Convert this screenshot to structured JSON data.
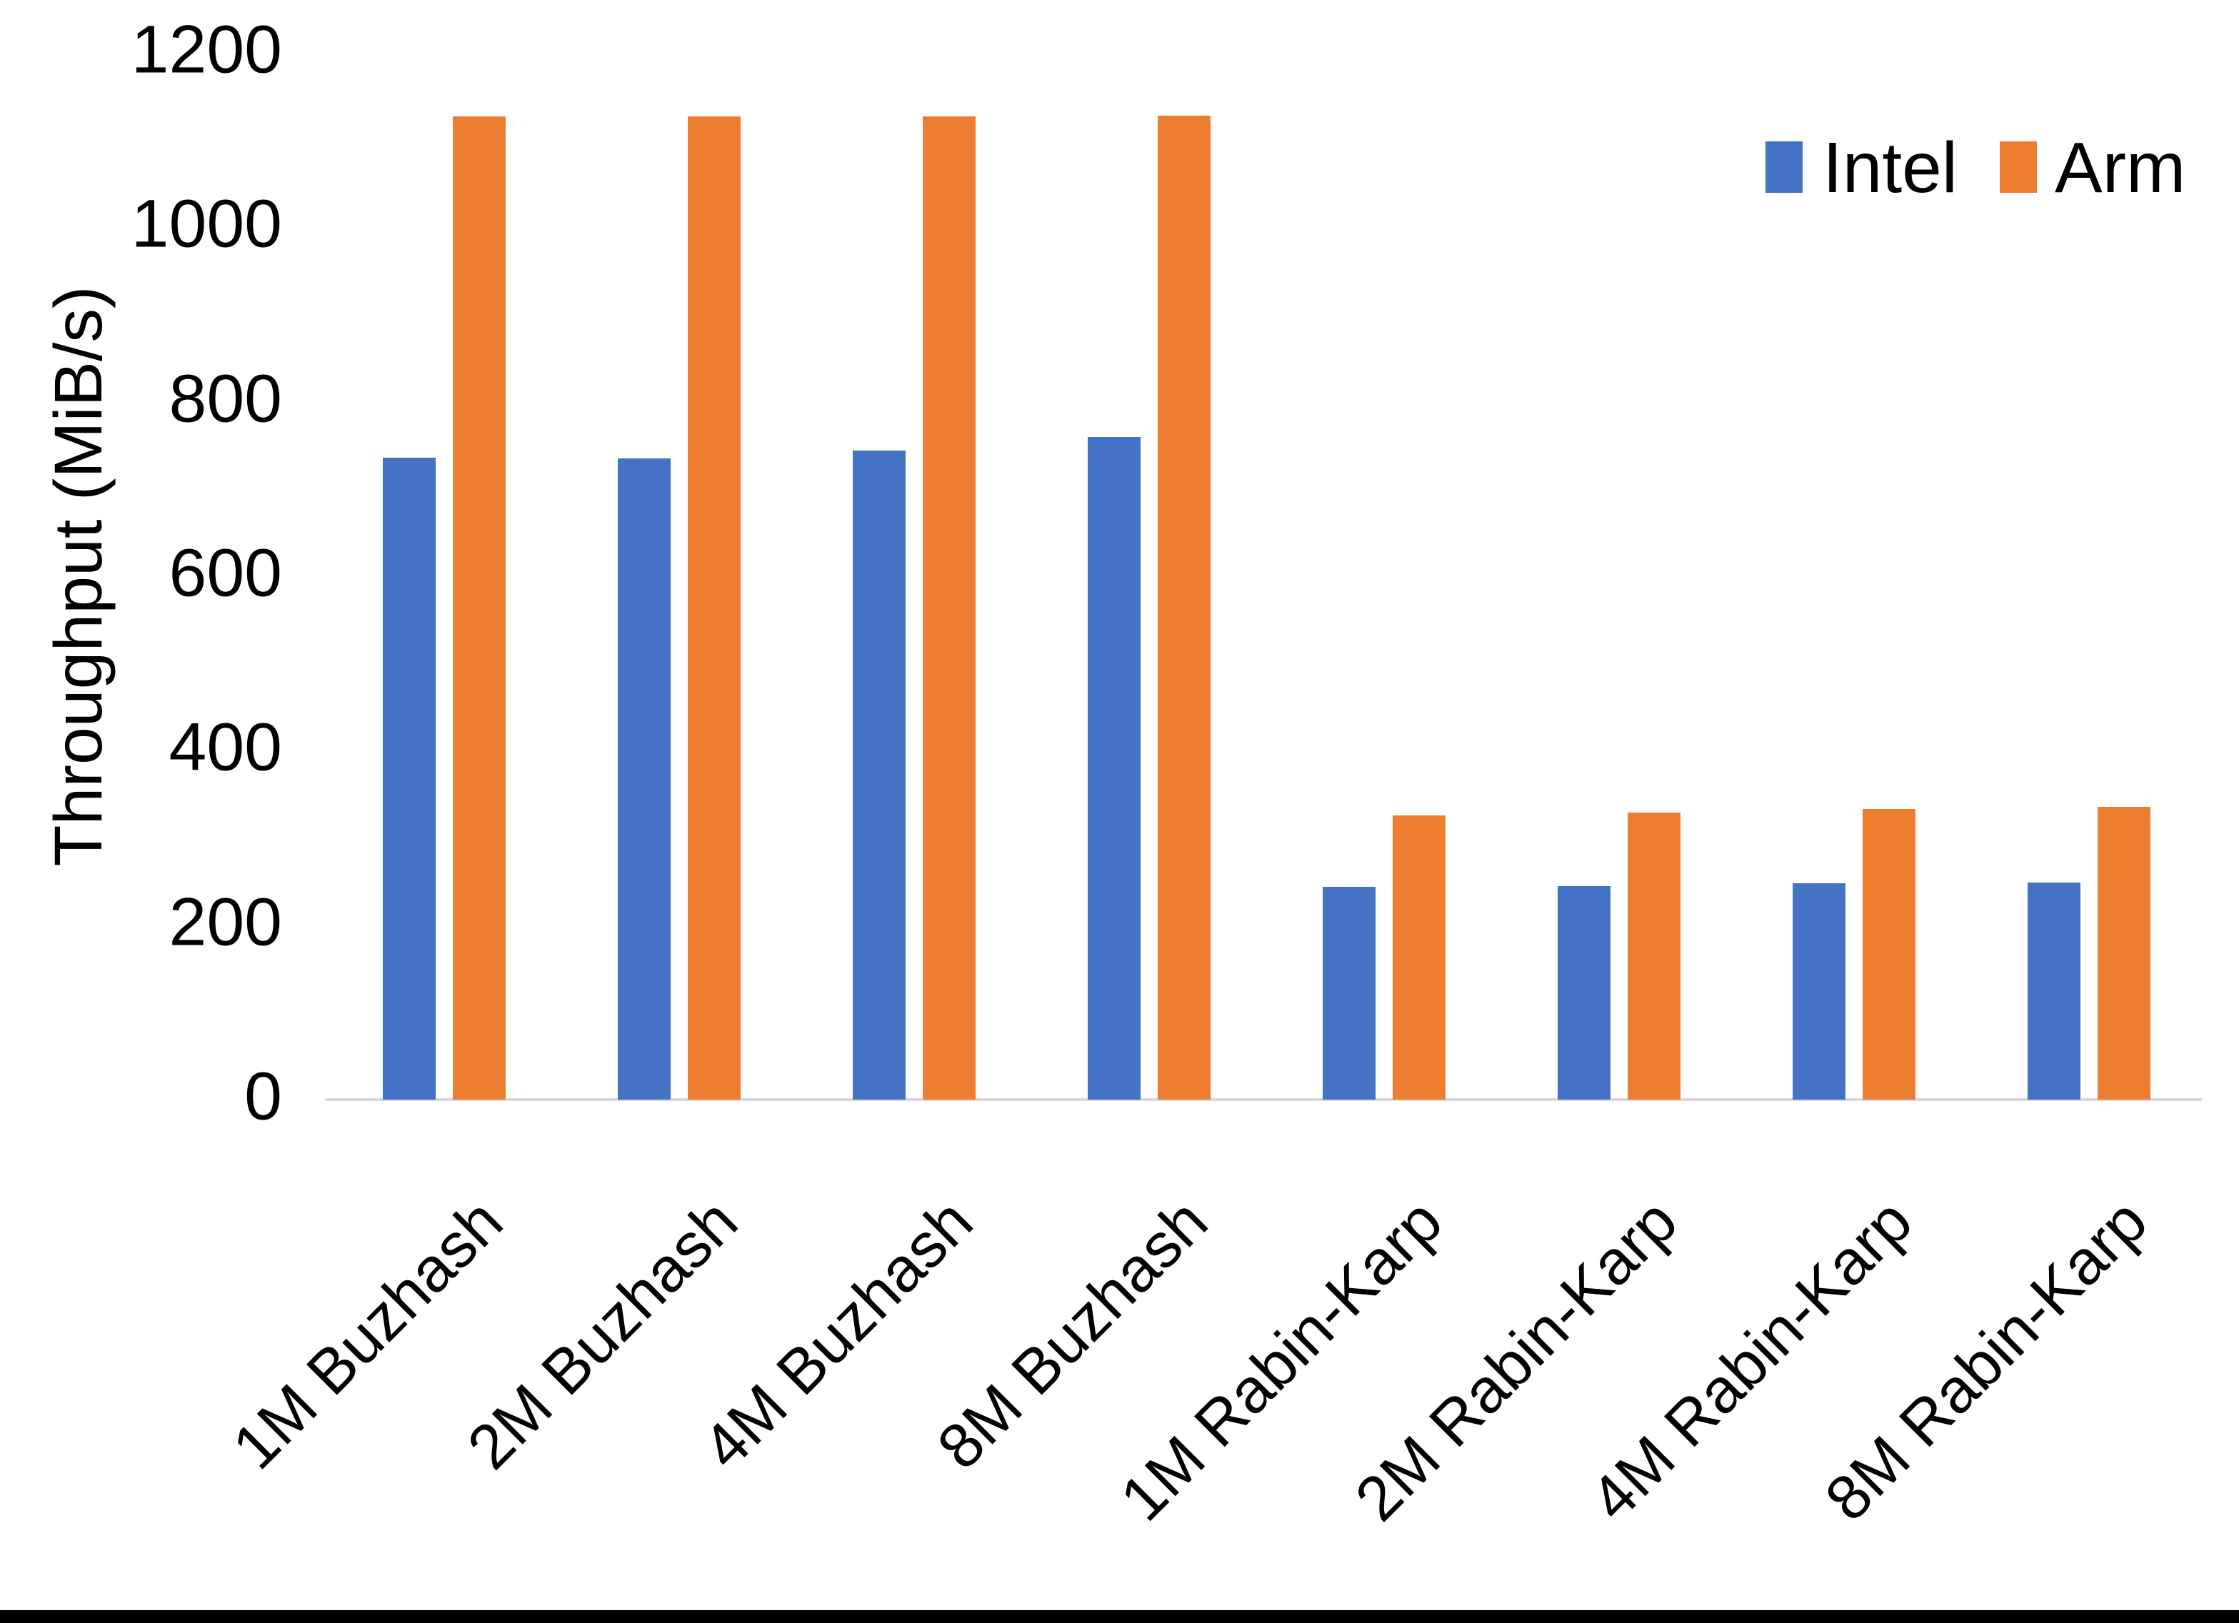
{
  "chart_data": {
    "type": "bar",
    "title": "",
    "xlabel": "",
    "ylabel": "Throughput (MiB/s)",
    "categories": [
      "1M Buzhash",
      "2M Buzhash",
      "4M Buzhash",
      "8M Buzhash",
      "1M Rabin-Karp",
      "2M Rabin-Karp",
      "4M Rabin-Karp",
      "8M Rabin-Karp"
    ],
    "series": [
      {
        "name": "Intel",
        "color": "#4472C4",
        "values": [
          736,
          735,
          744,
          760,
          244,
          245,
          248,
          249
        ]
      },
      {
        "name": "Arm",
        "color": "#ED7D31",
        "values": [
          1127,
          1127,
          1127,
          1128,
          326,
          329,
          333,
          336
        ]
      }
    ],
    "yticks": [
      0,
      200,
      400,
      600,
      800,
      1000,
      1200
    ],
    "ylim": [
      0,
      1200
    ],
    "grid": false,
    "legend_position": "top-right",
    "axis_line_color": "#D9D9D9",
    "text_color": "#000000"
  }
}
